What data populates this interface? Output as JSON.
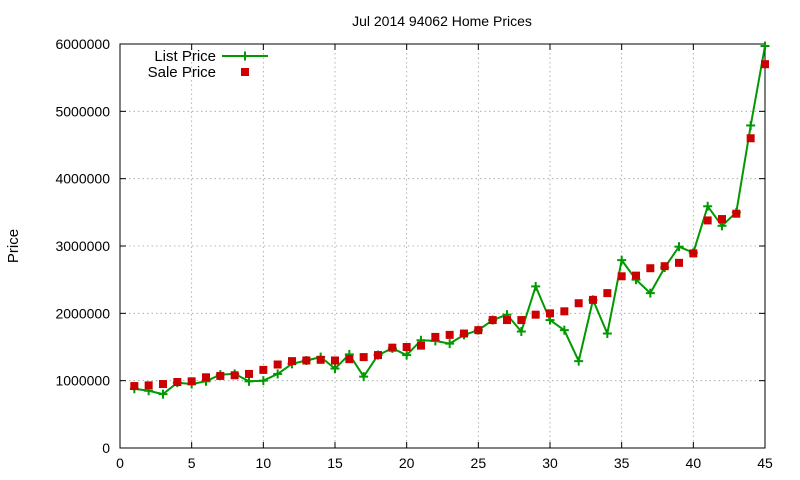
{
  "chart_data": {
    "type": "line",
    "title": "Jul 2014 94062 Home Prices",
    "xlabel": "",
    "ylabel": "Price",
    "xlim": [
      0,
      45
    ],
    "ylim": [
      0,
      6000000
    ],
    "xticks": [
      0,
      5,
      10,
      15,
      20,
      25,
      30,
      35,
      40,
      45
    ],
    "yticks": [
      0,
      1000000,
      2000000,
      3000000,
      4000000,
      5000000,
      6000000
    ],
    "grid": true,
    "legend_position": "top-left",
    "x": [
      1,
      2,
      3,
      4,
      5,
      6,
      7,
      8,
      9,
      10,
      11,
      12,
      13,
      14,
      15,
      16,
      17,
      18,
      19,
      20,
      21,
      22,
      23,
      24,
      25,
      26,
      27,
      28,
      29,
      30,
      31,
      32,
      33,
      34,
      35,
      36,
      37,
      38,
      39,
      40,
      41,
      42,
      43,
      44,
      45
    ],
    "series": [
      {
        "name": "List Price",
        "style": "line-with-plus-markers",
        "color": "#009900",
        "values": [
          880000,
          850000,
          800000,
          970000,
          950000,
          990000,
          1090000,
          1100000,
          990000,
          1000000,
          1100000,
          1250000,
          1300000,
          1350000,
          1180000,
          1390000,
          1060000,
          1380000,
          1480000,
          1380000,
          1600000,
          1590000,
          1550000,
          1680000,
          1750000,
          1900000,
          1980000,
          1730000,
          2400000,
          1900000,
          1750000,
          1290000,
          2200000,
          1700000,
          2790000,
          2500000,
          2300000,
          2680000,
          2990000,
          2900000,
          3590000,
          3300000,
          3500000,
          4790000,
          5970000
        ]
      },
      {
        "name": "Sale Price",
        "style": "square-markers",
        "color": "#cc0000",
        "values": [
          920000,
          930000,
          950000,
          980000,
          990000,
          1050000,
          1070000,
          1080000,
          1100000,
          1160000,
          1240000,
          1290000,
          1300000,
          1310000,
          1300000,
          1320000,
          1350000,
          1380000,
          1490000,
          1500000,
          1520000,
          1650000,
          1680000,
          1700000,
          1750000,
          1900000,
          1900000,
          1900000,
          1980000,
          2000000,
          2030000,
          2150000,
          2200000,
          2300000,
          2550000,
          2560000,
          2670000,
          2700000,
          2750000,
          2890000,
          3380000,
          3400000,
          3480000,
          4600000,
          5700000
        ]
      }
    ]
  }
}
